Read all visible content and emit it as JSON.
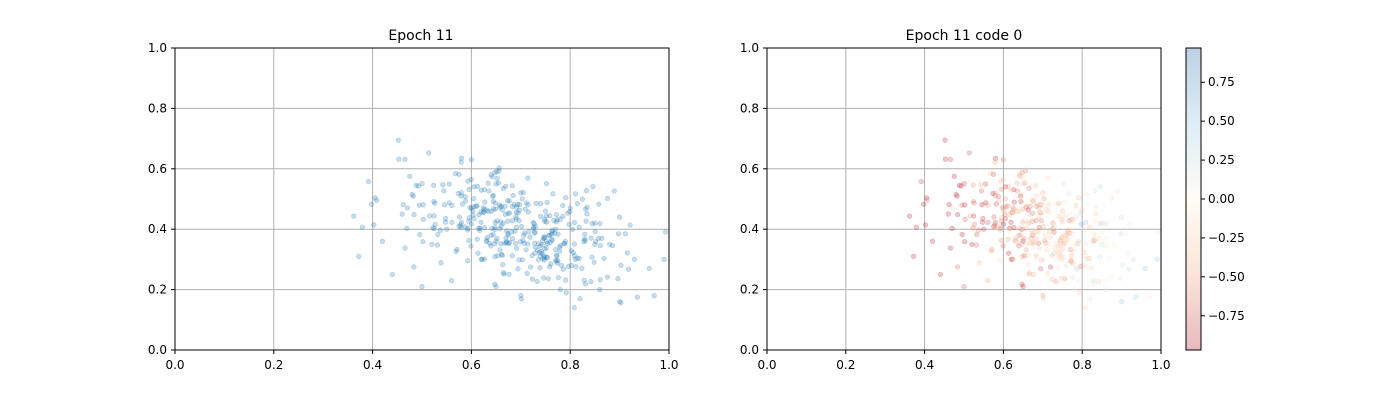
{
  "figure": {
    "colors": {
      "point": "#1f77b4",
      "grid": "#b0b0b0",
      "axis": "#000000",
      "cmap_low": "#b2182b",
      "cmap_mid": "#fff7e0",
      "cmap_high": "#2166ac"
    }
  },
  "chart_data": [
    {
      "type": "scatter",
      "title": "Epoch 11",
      "xlabel": "",
      "ylabel": "",
      "xlim": [
        0.0,
        1.0
      ],
      "ylim": [
        0.0,
        1.0
      ],
      "xticks": [
        "0.0",
        "0.2",
        "0.4",
        "0.6",
        "0.8",
        "1.0"
      ],
      "yticks": [
        "0.0",
        "0.2",
        "0.4",
        "0.6",
        "0.8",
        "1.0"
      ],
      "grid": true,
      "point_alpha": 0.25,
      "n_points": 400,
      "sample_points": [
        [
          0.452,
          0.695
        ],
        [
          0.453,
          0.632
        ],
        [
          0.362,
          0.443
        ],
        [
          0.372,
          0.31
        ],
        [
          0.58,
          0.635
        ],
        [
          0.6,
          0.63
        ],
        [
          0.48,
          0.515
        ],
        [
          0.64,
          0.58
        ],
        [
          0.65,
          0.55
        ],
        [
          0.7,
          0.52
        ],
        [
          0.75,
          0.46
        ],
        [
          0.8,
          0.47
        ],
        [
          0.85,
          0.42
        ],
        [
          0.9,
          0.44
        ],
        [
          0.88,
          0.35
        ],
        [
          0.93,
          0.3
        ],
        [
          0.96,
          0.27
        ],
        [
          0.99,
          0.3
        ],
        [
          0.97,
          0.18
        ],
        [
          0.9,
          0.16
        ],
        [
          0.86,
          0.2
        ],
        [
          0.82,
          0.17
        ],
        [
          0.78,
          0.2
        ],
        [
          0.7,
          0.18
        ],
        [
          0.65,
          0.21
        ],
        [
          0.56,
          0.23
        ],
        [
          0.5,
          0.21
        ],
        [
          0.44,
          0.25
        ],
        [
          0.42,
          0.36
        ],
        [
          0.55,
          0.4
        ],
        [
          0.62,
          0.3
        ],
        [
          0.67,
          0.37
        ],
        [
          0.73,
          0.34
        ],
        [
          0.77,
          0.4
        ],
        [
          0.81,
          0.3
        ],
        [
          0.69,
          0.44
        ],
        [
          0.6,
          0.47
        ],
        [
          0.52,
          0.35
        ],
        [
          0.46,
          0.45
        ],
        [
          0.58,
          0.52
        ]
      ]
    },
    {
      "type": "scatter",
      "title": "Epoch 11 code 0",
      "xlabel": "",
      "ylabel": "",
      "xlim": [
        0.0,
        1.0
      ],
      "ylim": [
        0.0,
        1.0
      ],
      "xticks": [
        "0.0",
        "0.2",
        "0.4",
        "0.6",
        "0.8",
        "1.0"
      ],
      "yticks": [
        "0.0",
        "0.2",
        "0.4",
        "0.6",
        "0.8",
        "1.0"
      ],
      "grid": true,
      "point_alpha": 0.25,
      "colormap": "RdBu (diverging)",
      "colorbar": {
        "range": [
          -0.97,
          0.97
        ],
        "ticks": [
          0.75,
          0.5,
          0.25,
          0.0,
          -0.25,
          -0.5,
          -0.75
        ],
        "tick_labels": [
          "0.75",
          "0.50",
          "0.25",
          "0.00",
          "−0.25",
          "−0.50",
          "−0.75"
        ]
      }
    }
  ]
}
